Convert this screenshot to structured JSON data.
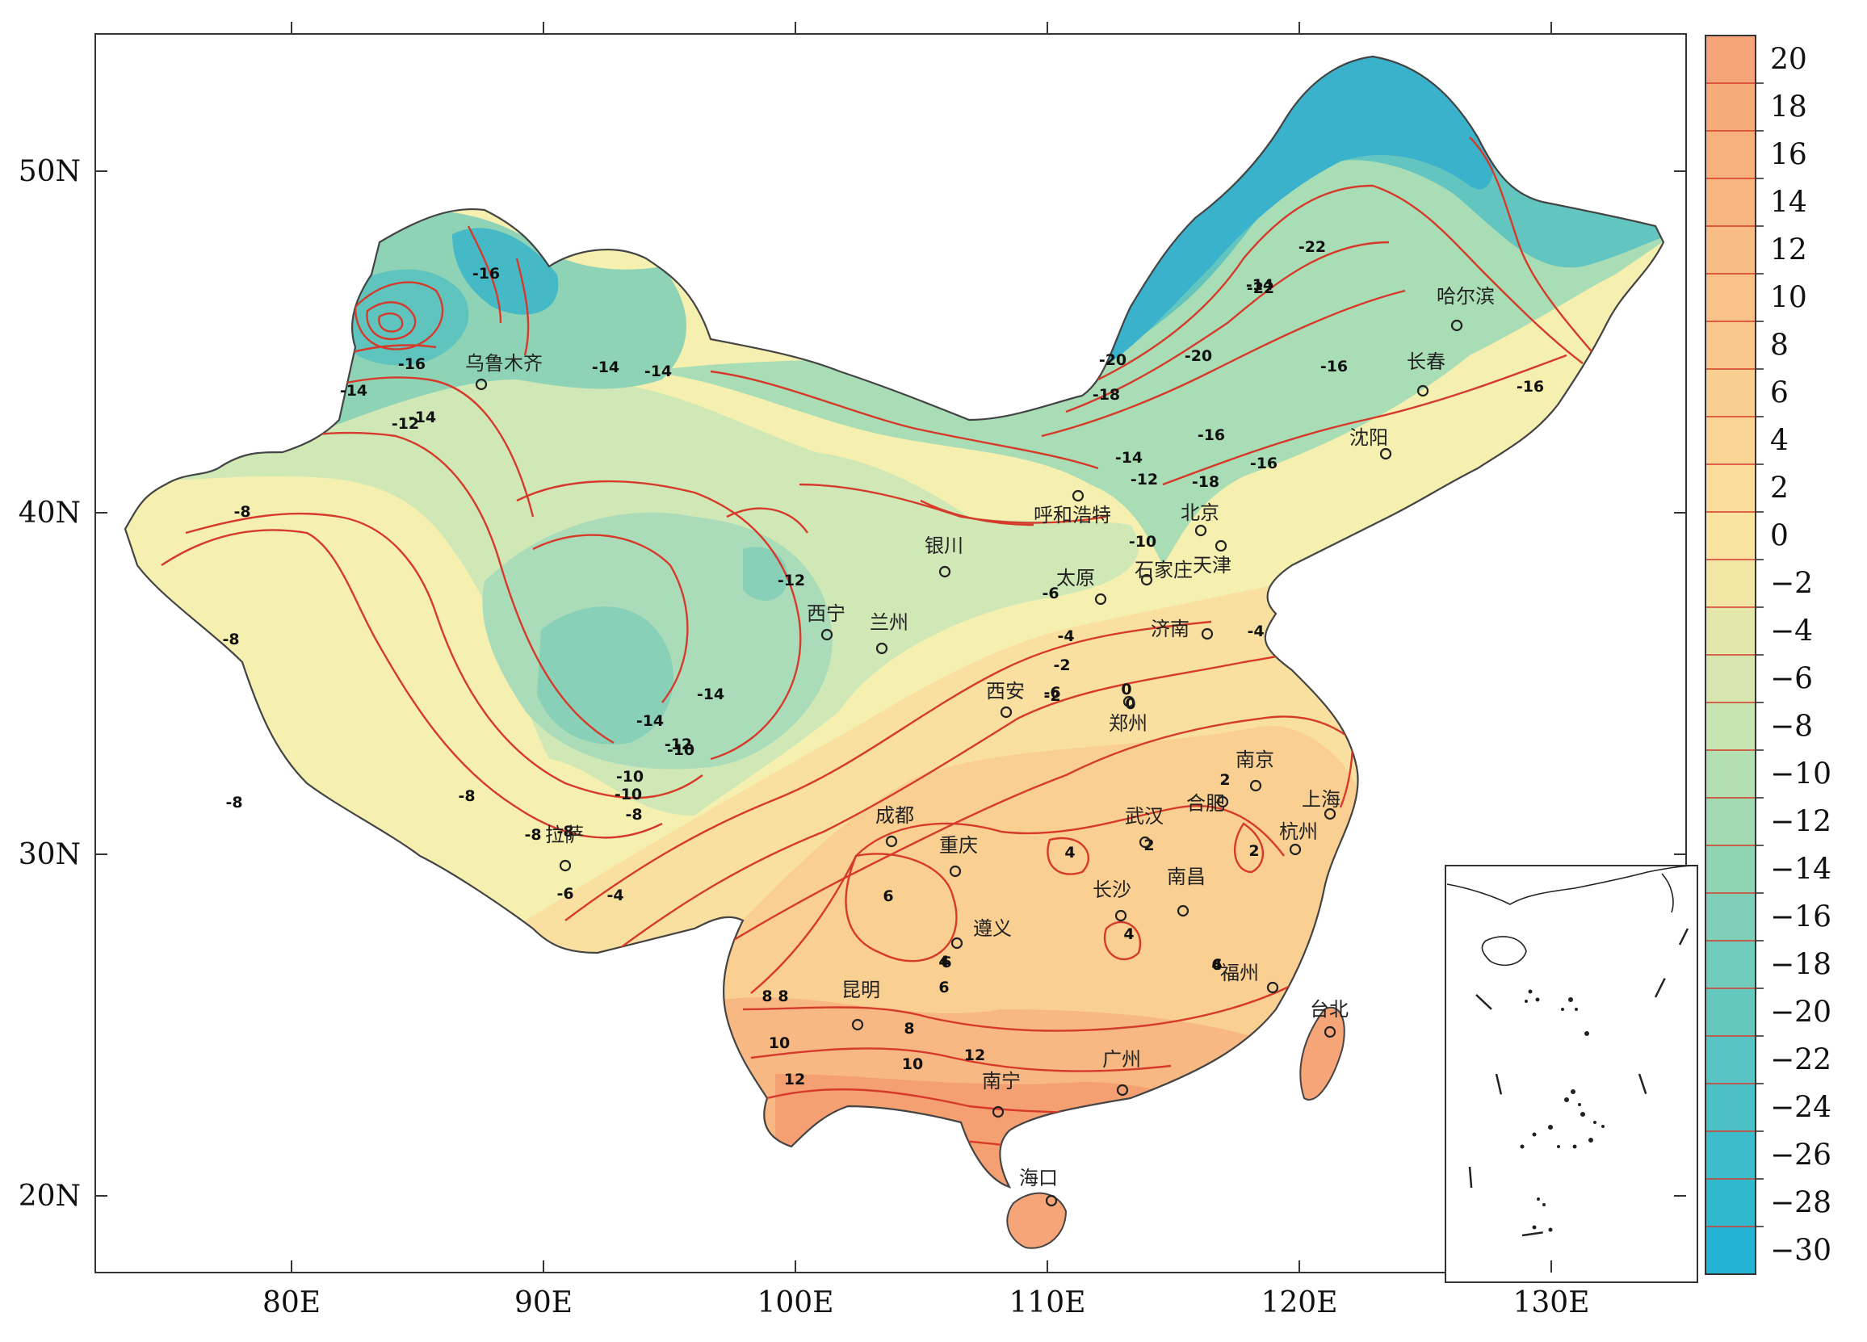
{
  "map": {
    "longitude_ticks": [
      "80E",
      "90E",
      "100E",
      "110E",
      "120E",
      "130E"
    ],
    "latitude_ticks": [
      "50N",
      "40N",
      "30N",
      "20N"
    ]
  },
  "legend": {
    "labels": [
      "20",
      "18",
      "16",
      "14",
      "12",
      "10",
      "8",
      "6",
      "4",
      "2",
      "0",
      "−2",
      "−4",
      "−6",
      "−8",
      "−10",
      "−12",
      "−14",
      "−16",
      "−18",
      "−20",
      "−22",
      "−24",
      "−26",
      "−28",
      "−30"
    ],
    "colors": {
      "warm_high": "#f6a578",
      "warm_mid": "#f9c98d",
      "neutral": "#fbe7a4",
      "cool_light": "#c9e6b1",
      "cool_mid": "#86d2b5",
      "cold": "#23b4d3",
      "isoline": "#d63a2b"
    }
  },
  "cities": [
    {
      "name": "乌鲁木齐"
    },
    {
      "name": "哈尔滨"
    },
    {
      "name": "长春"
    },
    {
      "name": "沈阳"
    },
    {
      "name": "北京"
    },
    {
      "name": "天津"
    },
    {
      "name": "呼和浩特"
    },
    {
      "name": "石家庄"
    },
    {
      "name": "太原"
    },
    {
      "name": "银川"
    },
    {
      "name": "西宁"
    },
    {
      "name": "兰州"
    },
    {
      "name": "济南"
    },
    {
      "name": "西安"
    },
    {
      "name": "郑州"
    },
    {
      "name": "南京"
    },
    {
      "name": "合肥"
    },
    {
      "name": "上海"
    },
    {
      "name": "武汉"
    },
    {
      "name": "杭州"
    },
    {
      "name": "成都"
    },
    {
      "name": "重庆"
    },
    {
      "name": "长沙"
    },
    {
      "name": "南昌"
    },
    {
      "name": "拉萨"
    },
    {
      "name": "遵义"
    },
    {
      "name": "福州"
    },
    {
      "name": "台北"
    },
    {
      "name": "昆明"
    },
    {
      "name": "广州"
    },
    {
      "name": "南宁"
    },
    {
      "name": "海口"
    }
  ],
  "contour_labels": [
    "-8",
    "-8",
    "-8",
    "-8",
    "-8",
    "-8",
    "-10",
    "-10",
    "-10",
    "-12",
    "-12",
    "-12",
    "-12",
    "-14",
    "-14",
    "-14",
    "-14",
    "-14",
    "-14",
    "-14",
    "-16",
    "-16",
    "-16",
    "-16",
    "-16",
    "-16",
    "-18",
    "-18",
    "-20",
    "-20",
    "-22",
    "-22",
    "-14",
    "-10",
    "-6",
    "-6",
    "-4",
    "-4",
    "-2",
    "-2",
    "0",
    "0",
    "2",
    "2",
    "2",
    "4",
    "4",
    "4",
    "4",
    "6",
    "6",
    "6",
    "6",
    "8",
    "8",
    "8",
    "10",
    "10",
    "12",
    "12",
    "-8",
    "-6",
    "-4"
  ]
}
